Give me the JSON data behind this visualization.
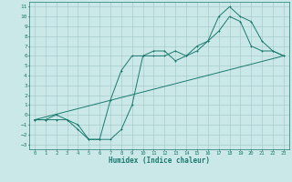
{
  "xlabel": "Humidex (Indice chaleur)",
  "bg_color": "#cbe8e8",
  "grid_color": "#a8cccc",
  "line_color": "#1a7a6e",
  "xlim": [
    -0.5,
    23.5
  ],
  "ylim": [
    -3.5,
    11.5
  ],
  "xticks": [
    0,
    1,
    2,
    3,
    4,
    5,
    6,
    7,
    8,
    9,
    10,
    11,
    12,
    13,
    14,
    15,
    16,
    17,
    18,
    19,
    20,
    21,
    22,
    23
  ],
  "yticks": [
    -3,
    -2,
    -1,
    0,
    1,
    2,
    3,
    4,
    5,
    6,
    7,
    8,
    9,
    10,
    11
  ],
  "line1_x": [
    0,
    1,
    2,
    3,
    4,
    5,
    6,
    7,
    8,
    9,
    10,
    11,
    12,
    13,
    14,
    15,
    16,
    17,
    18,
    19,
    20,
    21,
    22,
    23
  ],
  "line1_y": [
    -0.5,
    -0.5,
    -0.5,
    -0.5,
    -1.5,
    -2.5,
    -2.5,
    -2.5,
    -1.5,
    1.0,
    6.0,
    6.0,
    6.0,
    6.5,
    6.0,
    6.5,
    7.5,
    8.5,
    10.0,
    9.5,
    7.0,
    6.5,
    6.5,
    6.0
  ],
  "line2_x": [
    0,
    1,
    2,
    3,
    4,
    5,
    6,
    7,
    8,
    9,
    10,
    11,
    12,
    13,
    14,
    15,
    16,
    17,
    18,
    19,
    20,
    21,
    22,
    23
  ],
  "line2_y": [
    -0.5,
    -0.5,
    0.0,
    -0.5,
    -1.0,
    -2.5,
    -2.5,
    1.5,
    4.5,
    6.0,
    6.0,
    6.5,
    6.5,
    5.5,
    6.0,
    7.0,
    7.5,
    10.0,
    11.0,
    10.0,
    9.5,
    7.5,
    6.5,
    6.0
  ],
  "line3_x": [
    0,
    23
  ],
  "line3_y": [
    -0.5,
    6.0
  ]
}
